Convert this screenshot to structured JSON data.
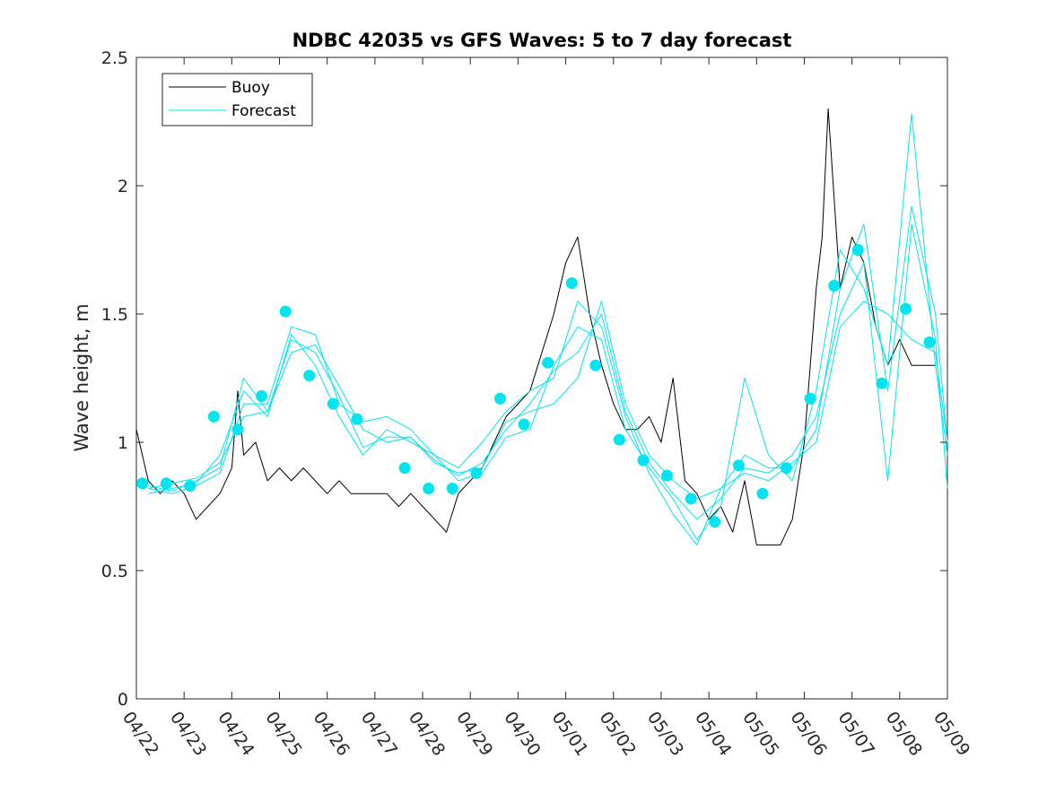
{
  "chart_data": {
    "type": "line",
    "title": "NDBC 42035 vs GFS Waves: 5 to 7 day forecast",
    "xlabel": "",
    "ylabel": "Wave height, m",
    "xlim": [
      "04/22",
      "05/09"
    ],
    "ylim": [
      0,
      2.5
    ],
    "x_tick_labels": [
      "04/22",
      "04/23",
      "04/24",
      "04/25",
      "04/26",
      "04/27",
      "04/28",
      "04/29",
      "04/30",
      "05/01",
      "05/02",
      "05/03",
      "05/04",
      "05/05",
      "05/06",
      "05/07",
      "05/08",
      "05/09"
    ],
    "y_ticks": [
      0,
      0.5,
      1,
      1.5,
      2,
      2.5
    ],
    "y_tick_labels": [
      "0",
      "0.5",
      "1",
      "1.5",
      "2",
      "2.5"
    ],
    "grid": false,
    "legend": {
      "placement": "top-left",
      "entries": [
        {
          "label": "Buoy",
          "color": "#000000"
        },
        {
          "label": "Forecast",
          "color": "#00e5ee"
        }
      ]
    },
    "colors": {
      "buoy": "#000000",
      "forecast": "#00e5ee"
    },
    "series": [
      {
        "name": "Buoy",
        "x": [
          "04/22 00:00",
          "04/22 06:00",
          "04/22 12:00",
          "04/22 18:00",
          "04/23 00:00",
          "04/23 06:00",
          "04/23 12:00",
          "04/23 18:00",
          "04/24 00:00",
          "04/24 03:00",
          "04/24 06:00",
          "04/24 12:00",
          "04/24 18:00",
          "04/25 00:00",
          "04/25 06:00",
          "04/25 12:00",
          "04/25 18:00",
          "04/26 00:00",
          "04/26 06:00",
          "04/26 12:00",
          "04/26 18:00",
          "04/27 00:00",
          "04/27 06:00",
          "04/27 12:00",
          "04/27 18:00",
          "04/28 00:00",
          "04/28 06:00",
          "04/28 12:00",
          "04/28 18:00",
          "04/29 00:00",
          "04/29 06:00",
          "04/29 12:00",
          "04/29 18:00",
          "04/30 00:00",
          "04/30 06:00",
          "04/30 12:00",
          "04/30 18:00",
          "05/01 00:00",
          "05/01 06:00",
          "05/01 12:00",
          "05/01 18:00",
          "05/02 00:00",
          "05/02 06:00",
          "05/02 12:00",
          "05/02 18:00",
          "05/03 00:00",
          "05/03 06:00",
          "05/03 12:00",
          "05/03 18:00",
          "05/04 00:00",
          "05/04 06:00",
          "05/04 12:00",
          "05/04 18:00",
          "05/05 00:00",
          "05/05 06:00",
          "05/05 12:00",
          "05/05 18:00",
          "05/06 00:00",
          "05/06 06:00",
          "05/06 09:00",
          "05/06 12:00",
          "05/06 18:00",
          "05/07 00:00",
          "05/07 06:00",
          "05/07 12:00",
          "05/07 18:00",
          "05/08 00:00",
          "05/08 06:00",
          "05/08 12:00",
          "05/08 18:00"
        ],
        "values": [
          1.05,
          0.85,
          0.8,
          0.85,
          0.8,
          0.7,
          0.75,
          0.8,
          0.9,
          1.2,
          0.95,
          1.0,
          0.85,
          0.9,
          0.85,
          0.9,
          0.85,
          0.8,
          0.85,
          0.8,
          0.8,
          0.8,
          0.8,
          0.75,
          0.8,
          0.75,
          0.7,
          0.65,
          0.8,
          0.85,
          0.9,
          1.0,
          1.1,
          1.15,
          1.2,
          1.35,
          1.5,
          1.7,
          1.8,
          1.5,
          1.3,
          1.15,
          1.05,
          1.05,
          1.1,
          1.0,
          1.25,
          0.85,
          0.8,
          0.7,
          0.75,
          0.65,
          0.85,
          0.6,
          0.6,
          0.6,
          0.7,
          1.0,
          1.6,
          1.8,
          2.3,
          1.6,
          1.8,
          1.7,
          1.45,
          1.3,
          1.4,
          1.3,
          1.3,
          1.3
        ]
      },
      {
        "name": "Forecast",
        "x": [
          "04/22 06:00",
          "04/22 18:00",
          "04/23 06:00",
          "04/23 18:00",
          "04/24 06:00",
          "04/24 18:00",
          "04/25 06:00",
          "04/25 18:00",
          "04/26 06:00",
          "04/26 18:00",
          "04/27 06:00",
          "04/27 18:00",
          "04/28 06:00",
          "04/28 18:00",
          "04/29 06:00",
          "04/29 18:00",
          "04/30 06:00",
          "04/30 18:00",
          "05/01 06:00",
          "05/01 18:00",
          "05/02 06:00",
          "05/02 18:00",
          "05/03 06:00",
          "05/03 18:00",
          "05/04 06:00",
          "05/04 18:00",
          "05/05 06:00",
          "05/05 18:00",
          "05/06 06:00",
          "05/06 18:00",
          "05/07 06:00",
          "05/07 18:00",
          "05/08 06:00",
          "05/08 18:00",
          "05/09 00:00"
        ],
        "values": [
          0.82,
          0.84,
          0.86,
          0.92,
          1.1,
          1.12,
          1.35,
          1.38,
          1.22,
          1.05,
          1.0,
          1.02,
          0.92,
          0.88,
          0.9,
          1.08,
          1.12,
          1.15,
          1.25,
          1.55,
          1.15,
          0.95,
          0.85,
          0.78,
          0.82,
          0.88,
          0.85,
          0.92,
          1.0,
          1.45,
          1.55,
          1.5,
          1.4,
          1.35,
          1.0
        ]
      },
      {
        "name": "",
        "x": [
          "04/22 06:00",
          "04/22 18:00",
          "04/23 06:00",
          "04/23 18:00",
          "04/24 06:00",
          "04/24 18:00",
          "04/25 06:00",
          "04/25 18:00",
          "04/26 06:00",
          "04/26 18:00",
          "04/27 06:00",
          "04/27 18:00",
          "04/28 06:00",
          "04/28 18:00",
          "04/29 06:00",
          "04/29 18:00",
          "04/30 06:00",
          "04/30 18:00",
          "05/01 06:00",
          "05/01 18:00",
          "05/02 06:00",
          "05/02 18:00",
          "05/03 06:00",
          "05/03 18:00",
          "05/04 06:00",
          "05/04 18:00",
          "05/05 06:00",
          "05/05 18:00",
          "05/06 06:00",
          "05/06 18:00",
          "05/07 06:00",
          "05/07 18:00",
          "05/08 06:00",
          "05/08 18:00",
          "05/09 00:00"
        ],
        "values": [
          0.8,
          0.82,
          0.84,
          0.95,
          1.2,
          1.1,
          1.42,
          1.3,
          1.1,
          0.95,
          1.05,
          1.0,
          0.95,
          0.85,
          0.88,
          1.02,
          1.05,
          1.3,
          1.45,
          1.4,
          1.05,
          0.9,
          0.78,
          0.62,
          0.75,
          1.25,
          0.95,
          0.85,
          1.2,
          1.75,
          1.6,
          1.3,
          2.28,
          1.3,
          0.95
        ]
      },
      {
        "name": "",
        "x": [
          "04/22 06:00",
          "04/22 18:00",
          "04/23 06:00",
          "04/23 18:00",
          "04/24 06:00",
          "04/24 18:00",
          "04/25 06:00",
          "04/25 18:00",
          "04/26 06:00",
          "04/26 18:00",
          "04/27 06:00",
          "04/27 18:00",
          "04/28 06:00",
          "04/28 18:00",
          "04/29 06:00",
          "04/29 18:00",
          "04/30 06:00",
          "04/30 18:00",
          "05/01 06:00",
          "05/01 18:00",
          "05/02 06:00",
          "05/02 18:00",
          "05/03 06:00",
          "05/03 18:00",
          "05/04 06:00",
          "05/04 18:00",
          "05/05 06:00",
          "05/05 18:00",
          "05/06 06:00",
          "05/06 18:00",
          "05/07 06:00",
          "05/07 18:00",
          "05/08 06:00",
          "05/08 18:00",
          "05/09 00:00"
        ],
        "values": [
          0.82,
          0.8,
          0.83,
          0.88,
          1.15,
          1.15,
          1.45,
          1.42,
          1.15,
          1.08,
          1.1,
          1.05,
          0.95,
          0.9,
          1.0,
          1.12,
          1.2,
          1.25,
          1.55,
          1.45,
          1.1,
          0.88,
          0.72,
          0.6,
          0.82,
          0.95,
          0.9,
          0.9,
          1.05,
          1.6,
          1.85,
          1.2,
          1.92,
          1.5,
          1.0
        ]
      },
      {
        "name": "",
        "x": [
          "04/22 06:00",
          "04/22 18:00",
          "04/23 06:00",
          "04/23 18:00",
          "04/24 06:00",
          "04/24 18:00",
          "04/25 06:00",
          "04/25 18:00",
          "04/26 06:00",
          "04/26 18:00",
          "04/27 06:00",
          "04/27 18:00",
          "04/28 06:00",
          "04/28 18:00",
          "04/29 06:00",
          "04/29 18:00",
          "04/30 06:00",
          "04/30 18:00",
          "05/01 06:00",
          "05/01 18:00",
          "05/02 06:00",
          "05/02 18:00",
          "05/03 06:00",
          "05/03 18:00",
          "05/04 06:00",
          "05/04 18:00",
          "05/05 06:00",
          "05/05 18:00",
          "05/06 06:00",
          "05/06 18:00",
          "05/07 06:00",
          "05/07 18:00",
          "05/08 06:00",
          "05/08 18:00",
          "05/09 00:00"
        ],
        "values": [
          0.83,
          0.81,
          0.85,
          0.9,
          1.25,
          1.12,
          1.4,
          1.35,
          1.18,
          0.98,
          1.02,
          1.02,
          0.93,
          0.87,
          0.92,
          1.05,
          1.15,
          1.28,
          1.35,
          1.5,
          1.12,
          0.92,
          0.8,
          0.7,
          0.78,
          0.9,
          0.88,
          0.95,
          1.1,
          1.5,
          1.7,
          0.85,
          1.85,
          1.4,
          0.82
        ]
      },
      {
        "name": "",
        "type": "scatter",
        "x": [
          "04/22 03:00",
          "04/22 15:00",
          "04/23 03:00",
          "04/23 15:00",
          "04/24 03:00",
          "04/24 15:00",
          "04/25 03:00",
          "04/25 15:00",
          "04/26 03:00",
          "04/26 15:00",
          "04/27 15:00",
          "04/28 03:00",
          "04/28 15:00",
          "04/29 03:00",
          "04/29 15:00",
          "04/30 03:00",
          "04/30 15:00",
          "05/01 03:00",
          "05/01 15:00",
          "05/02 03:00",
          "05/02 15:00",
          "05/03 03:00",
          "05/03 15:00",
          "05/04 03:00",
          "05/04 15:00",
          "05/05 03:00",
          "05/05 15:00",
          "05/06 03:00",
          "05/06 15:00",
          "05/07 03:00",
          "05/07 15:00",
          "05/08 03:00",
          "05/08 15:00"
        ],
        "values": [
          0.84,
          0.84,
          0.83,
          1.1,
          1.05,
          1.18,
          1.51,
          1.26,
          1.15,
          1.09,
          0.9,
          0.82,
          0.82,
          0.88,
          1.17,
          1.07,
          1.31,
          1.62,
          1.3,
          1.01,
          0.93,
          0.87,
          0.78,
          0.69,
          0.91,
          0.8,
          0.9,
          1.17,
          1.61,
          1.75,
          1.23,
          1.52,
          1.39
        ]
      }
    ]
  }
}
